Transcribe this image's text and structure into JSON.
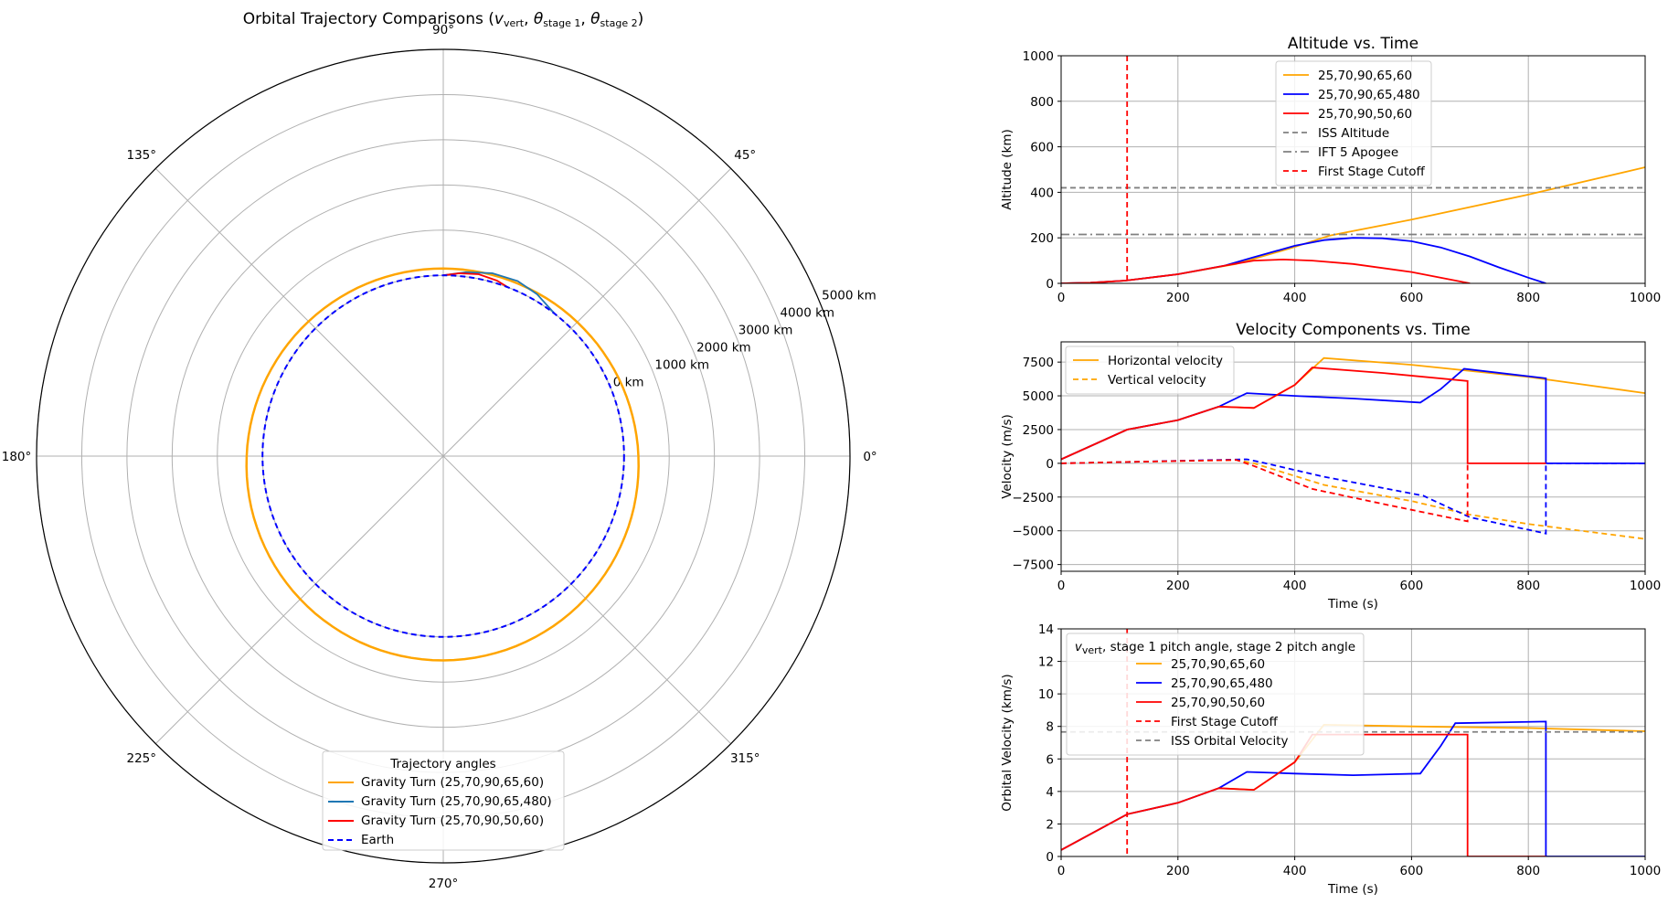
{
  "colors": {
    "orange": "#ffa500",
    "blue": "#0000ff",
    "red": "#ff0000",
    "steelblue": "#1f77b4",
    "gray": "#808080",
    "grid": "#b0b0b0"
  },
  "chart_data": [
    {
      "id": "polar",
      "type": "polar-line",
      "title": "Orbital Trajectory Comparisons (v_vert, θ_stage 1, θ_stage 2)",
      "angle_ticks": [
        "0°",
        "45°",
        "90°",
        "135°",
        "180°",
        "225°",
        "270°",
        "315°"
      ],
      "radial_ticks": [
        "0 km",
        "1000 km",
        "2000 km",
        "3000 km",
        "4000 km",
        "5000 km"
      ],
      "radial_tick_values": [
        0,
        1000,
        2000,
        3000,
        4000,
        5000
      ],
      "rlim": [
        -4000,
        5000
      ],
      "earth_radius_km": 6371,
      "legend_title": "Trajectory angles",
      "legend_placement": "lower center",
      "grid": true,
      "series": [
        {
          "name": "Gravity Turn (25,70,90,65,60)",
          "color": "orange",
          "style": "solid",
          "kind": "orbit",
          "perigee_km": 150,
          "apogee_km": 520,
          "apogee_angle_deg": 265
        },
        {
          "name": "Gravity Turn (25,70,90,65,480)",
          "color": "steelblue",
          "style": "solid",
          "kind": "arc",
          "theta_deg": [
            90,
            83,
            75,
            67,
            60,
            52
          ],
          "alt_km": [
            0,
            100,
            190,
            210,
            140,
            0
          ]
        },
        {
          "name": "Gravity Turn (25,70,90,50,60)",
          "color": "red",
          "style": "solid",
          "kind": "arc",
          "theta_deg": [
            90,
            85,
            79,
            73,
            69
          ],
          "alt_km": [
            0,
            60,
            100,
            60,
            0
          ]
        },
        {
          "name": "Earth",
          "color": "blue",
          "style": "dashed",
          "kind": "earth"
        }
      ]
    },
    {
      "id": "altitude",
      "type": "line",
      "title": "Altitude vs. Time",
      "xlabel": "",
      "ylabel": "Altitude (km)",
      "xlim": [
        0,
        1000
      ],
      "ylim": [
        0,
        1000
      ],
      "xticks": [
        0,
        200,
        400,
        600,
        800,
        1000
      ],
      "yticks": [
        0,
        200,
        400,
        600,
        800,
        1000
      ],
      "grid": true,
      "legend_placement": "upper center",
      "series": [
        {
          "name": "25,70,90,65,60",
          "color": "orange",
          "style": "solid",
          "x": [
            0,
            50,
            110,
            200,
            300,
            400,
            460,
            600,
            800,
            1000
          ],
          "y": [
            0,
            3,
            12,
            40,
            85,
            160,
            210,
            280,
            390,
            510
          ]
        },
        {
          "name": "25,70,90,65,480",
          "color": "blue",
          "style": "solid",
          "x": [
            0,
            50,
            110,
            200,
            280,
            330,
            400,
            450,
            500,
            550,
            600,
            650,
            700,
            750,
            800,
            830
          ],
          "y": [
            0,
            3,
            12,
            40,
            78,
            115,
            165,
            190,
            200,
            198,
            185,
            158,
            118,
            70,
            25,
            0
          ]
        },
        {
          "name": "25,70,90,50,60",
          "color": "red",
          "style": "solid",
          "x": [
            0,
            50,
            110,
            200,
            280,
            330,
            380,
            430,
            500,
            600,
            700
          ],
          "y": [
            0,
            3,
            12,
            40,
            78,
            100,
            105,
            100,
            85,
            50,
            0
          ]
        },
        {
          "name": "ISS Altitude",
          "color": "gray",
          "style": "dashed",
          "hline": 420
        },
        {
          "name": "IFT 5 Apogee",
          "color": "gray",
          "style": "dashdot",
          "hline": 215
        },
        {
          "name": "First Stage Cutoff",
          "color": "red",
          "style": "dashed",
          "vline": 113
        }
      ]
    },
    {
      "id": "velocity",
      "type": "line",
      "title": "Velocity Components vs. Time",
      "xlabel": "Time (s)",
      "ylabel": "Velocity (m/s)",
      "xlim": [
        0,
        1000
      ],
      "ylim": [
        -8000,
        9000
      ],
      "xticks": [
        0,
        200,
        400,
        600,
        800,
        1000
      ],
      "yticks": [
        -7500,
        -5000,
        -2500,
        0,
        2500,
        5000,
        7500
      ],
      "ytick_labels": [
        "−7500",
        "−5000",
        "−2500",
        "0",
        "2500",
        "5000",
        "7500"
      ],
      "grid": true,
      "legend_placement": "upper left",
      "legend_entries": [
        {
          "name": "Horizontal velocity",
          "color": "orange",
          "style": "solid"
        },
        {
          "name": "Vertical velocity",
          "color": "orange",
          "style": "dashed"
        }
      ],
      "series": [
        {
          "name": "25,70,90,65,60 horizontal",
          "color": "orange",
          "style": "solid",
          "x": [
            0,
            113,
            200,
            270,
            330,
            400,
            450,
            600,
            800,
            1000
          ],
          "y": [
            300,
            2500,
            3200,
            4200,
            4100,
            5800,
            7800,
            7300,
            6400,
            5200
          ]
        },
        {
          "name": "25,70,90,65,480 horizontal",
          "color": "blue",
          "style": "solid",
          "x": [
            0,
            113,
            200,
            270,
            318,
            400,
            500,
            615,
            650,
            690,
            830,
            830,
            1000
          ],
          "y": [
            300,
            2500,
            3200,
            4200,
            5200,
            5000,
            4800,
            4500,
            5500,
            7000,
            6300,
            0,
            0
          ]
        },
        {
          "name": "25,70,90,50,60 horizontal",
          "color": "red",
          "style": "solid",
          "x": [
            0,
            113,
            200,
            270,
            330,
            400,
            430,
            550,
            696,
            696,
            830
          ],
          "y": [
            300,
            2500,
            3200,
            4200,
            4100,
            5800,
            7100,
            6700,
            6100,
            0,
            0
          ]
        },
        {
          "name": "25,70,90,65,60 vertical",
          "color": "orange",
          "style": "dashed",
          "x": [
            0,
            113,
            300,
            330,
            450,
            600,
            700,
            800,
            1000
          ],
          "y": [
            0,
            100,
            250,
            0,
            -1600,
            -2800,
            -3800,
            -4500,
            -5600
          ]
        },
        {
          "name": "25,70,90,65,480 vertical",
          "color": "blue",
          "style": "dashed",
          "x": [
            0,
            113,
            318,
            340,
            450,
            620,
            650,
            700,
            830,
            830,
            1000
          ],
          "y": [
            0,
            100,
            300,
            100,
            -1000,
            -2400,
            -3000,
            -4000,
            -5200,
            0,
            0
          ]
        },
        {
          "name": "25,70,90,50,60 vertical",
          "color": "red",
          "style": "dashed",
          "x": [
            0,
            113,
            300,
            330,
            430,
            550,
            696,
            696
          ],
          "y": [
            0,
            100,
            250,
            -200,
            -1900,
            -3000,
            -4300,
            0
          ]
        }
      ]
    },
    {
      "id": "orbital",
      "type": "line",
      "title": "",
      "xlabel": "Time (s)",
      "ylabel": "Orbital Velocity (km/s)",
      "xlim": [
        0,
        1000
      ],
      "ylim": [
        0,
        14
      ],
      "xticks": [
        0,
        200,
        400,
        600,
        800,
        1000
      ],
      "yticks": [
        0,
        2,
        4,
        6,
        8,
        10,
        12,
        14
      ],
      "grid": true,
      "legend_title": "v_vert, stage 1 pitch angle, stage 2 pitch angle",
      "legend_placement": "upper left",
      "series": [
        {
          "name": "25,70,90,65,60",
          "color": "orange",
          "style": "solid",
          "x": [
            0,
            113,
            200,
            270,
            330,
            400,
            450,
            600,
            800,
            1000
          ],
          "y": [
            0.4,
            2.6,
            3.3,
            4.2,
            4.1,
            5.8,
            8.1,
            8.0,
            7.9,
            7.7
          ]
        },
        {
          "name": "25,70,90,65,480",
          "color": "blue",
          "style": "solid",
          "x": [
            0,
            113,
            200,
            270,
            318,
            400,
            500,
            615,
            650,
            675,
            830,
            830,
            1000
          ],
          "y": [
            0.4,
            2.6,
            3.3,
            4.2,
            5.2,
            5.1,
            5.0,
            5.1,
            6.8,
            8.2,
            8.3,
            0,
            0
          ]
        },
        {
          "name": "25,70,90,50,60",
          "color": "red",
          "style": "solid",
          "x": [
            0,
            113,
            200,
            270,
            330,
            400,
            430,
            550,
            696,
            696,
            830
          ],
          "y": [
            0.4,
            2.6,
            3.3,
            4.2,
            4.1,
            5.8,
            7.5,
            7.5,
            7.5,
            0,
            0
          ]
        },
        {
          "name": "First Stage Cutoff",
          "color": "red",
          "style": "dashed",
          "vline": 113
        },
        {
          "name": "ISS Orbital Velocity",
          "color": "gray",
          "style": "dashed",
          "hline": 7.66
        }
      ]
    }
  ]
}
